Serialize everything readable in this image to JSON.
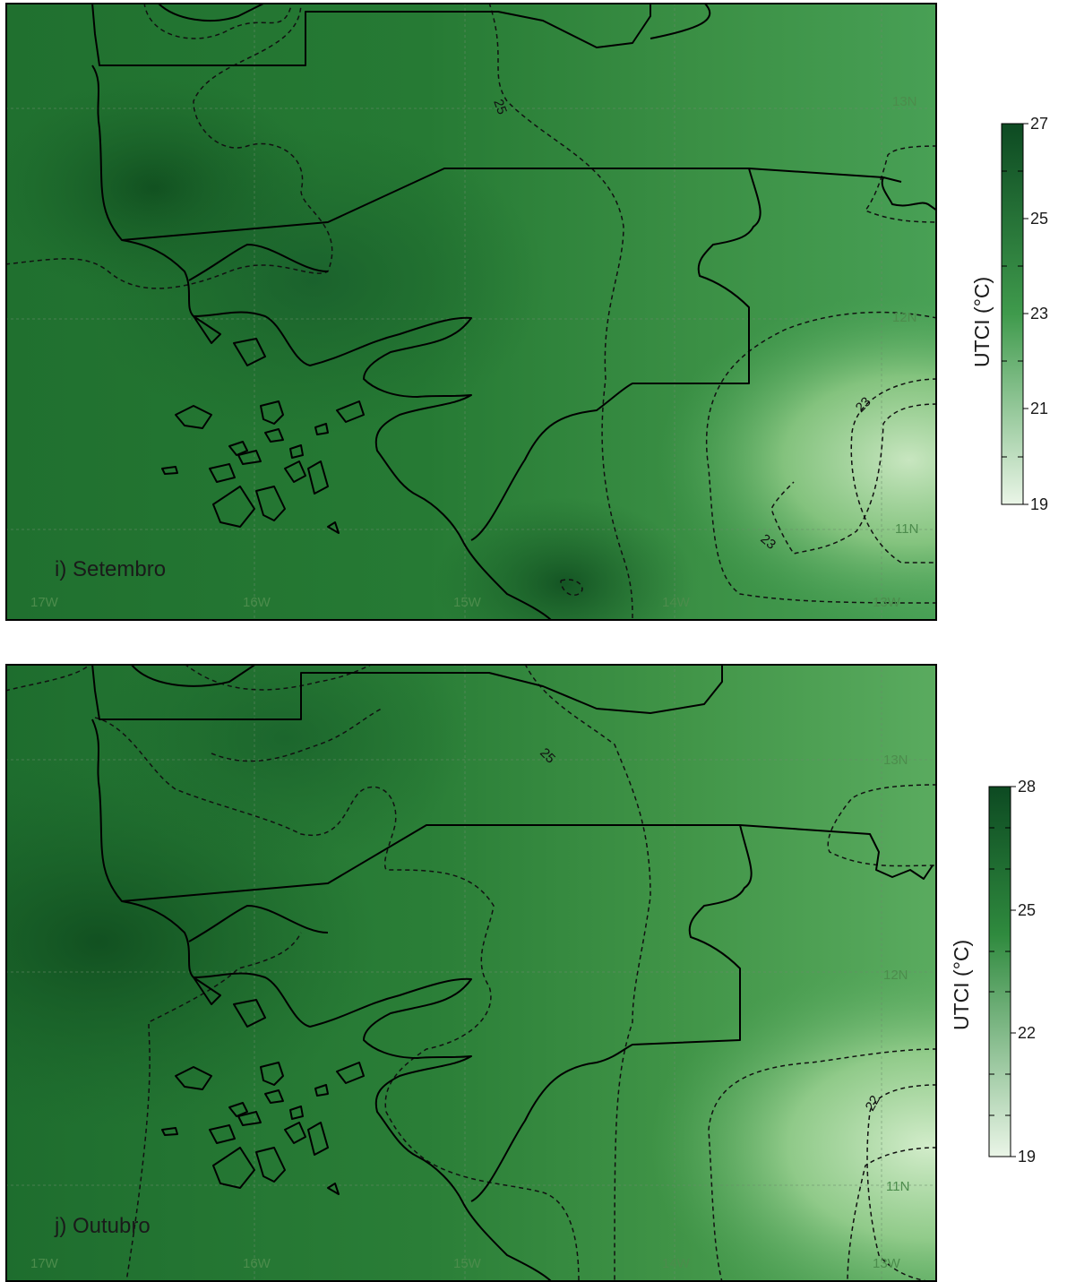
{
  "panels": [
    {
      "id": "sep",
      "title": "i) Setembro",
      "lon_labels": [
        "17W",
        "16W",
        "15W",
        "14W",
        "13W"
      ],
      "lat_labels": [
        "13N",
        "12N",
        "11N"
      ],
      "contour_labels": [
        "25",
        "23",
        "23"
      ],
      "colorbar": {
        "unit": "UTCI (°C)",
        "ticks": [
          "27",
          "25",
          "23",
          "21",
          "19"
        ],
        "min": 19,
        "max": 27
      }
    },
    {
      "id": "out",
      "title": "j) Outubro",
      "lon_labels": [
        "17W",
        "16W",
        "15W",
        "14W",
        "13W"
      ],
      "lat_labels": [
        "13N",
        "12N",
        "11N"
      ],
      "contour_labels": [
        "25",
        "22"
      ],
      "colorbar": {
        "unit": "UTCI (°C)",
        "ticks": [
          "28",
          "25",
          "22",
          "19"
        ],
        "min": 19,
        "max": 28
      }
    }
  ],
  "colors": {
    "colorbar_high": "#0d4a22",
    "colorbar_mid": "#3f9a4c",
    "colorbar_low": "#eaf5e7",
    "land_base": "#2e7d3a",
    "outline": "#000000"
  }
}
